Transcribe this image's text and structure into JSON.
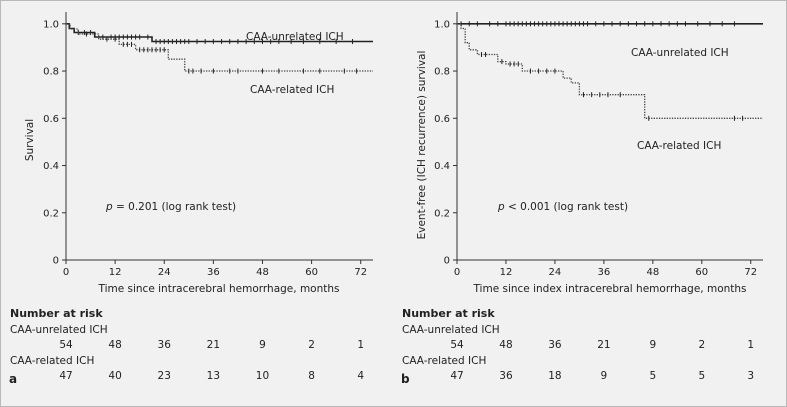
{
  "chart_data": [
    {
      "type": "line",
      "panel_label": "a",
      "xlabel": "Time since intracerebral hemorrhage, months",
      "ylabel": "Survival",
      "xlim": [
        0,
        75
      ],
      "ylim": [
        0,
        1.05
      ],
      "x_ticks": [
        0,
        12,
        24,
        36,
        48,
        60,
        72
      ],
      "y_ticks": [
        0,
        0.2,
        0.4,
        0.6,
        0.8,
        1.0
      ],
      "y_tick_labels": [
        "0",
        "0.2",
        "0.4",
        "0.6",
        "0.8",
        "1.0"
      ],
      "annotation_p": "p",
      "annotation_rest": " = 0.201 (log rank test)",
      "series": [
        {
          "name": "CAA-unrelated ICH",
          "style": "solid",
          "steps": [
            [
              0,
              1.0
            ],
            [
              0.8,
              0.98
            ],
            [
              2,
              0.963
            ],
            [
              7,
              0.944
            ],
            [
              21,
              0.925
            ],
            [
              75,
              0.925
            ]
          ],
          "censor_x": [
            3,
            4.5,
            6,
            9,
            11,
            12,
            13,
            14,
            15,
            16,
            17,
            18,
            20,
            22,
            23,
            24,
            25,
            26,
            27,
            28,
            29,
            30,
            32,
            34,
            36,
            38,
            40,
            42,
            44,
            46,
            48,
            50,
            52,
            55,
            58,
            62,
            66,
            70
          ]
        },
        {
          "name": "CAA-related ICH",
          "style": "dotted",
          "steps": [
            [
              0,
              1.0
            ],
            [
              1,
              0.978
            ],
            [
              3,
              0.957
            ],
            [
              8,
              0.935
            ],
            [
              13,
              0.913
            ],
            [
              17,
              0.89
            ],
            [
              25,
              0.85
            ],
            [
              29,
              0.8
            ],
            [
              75,
              0.8
            ]
          ],
          "censor_x": [
            5,
            10,
            12,
            14,
            15,
            16,
            18,
            19,
            20,
            21,
            22,
            23,
            24,
            30,
            31,
            33,
            36,
            40,
            42,
            48,
            52,
            58,
            62,
            68,
            71
          ]
        }
      ],
      "series_labels": [
        "CAA-unrelated ICH",
        "CAA-related ICH"
      ],
      "risk_table": {
        "title": "Number at risk",
        "rows": [
          {
            "label": "CAA-unrelated ICH",
            "values": [
              "54",
              "48",
              "36",
              "21",
              "9",
              "2",
              "1"
            ]
          },
          {
            "label": "CAA-related ICH",
            "values": [
              "47",
              "40",
              "23",
              "13",
              "10",
              "8",
              "4"
            ]
          }
        ]
      }
    },
    {
      "type": "line",
      "panel_label": "b",
      "xlabel": "Time since index intracerebral hemorrhage, months",
      "ylabel": "Event-free (ICH recurrence) survival",
      "xlim": [
        0,
        75
      ],
      "ylim": [
        0,
        1.05
      ],
      "x_ticks": [
        0,
        12,
        24,
        36,
        48,
        60,
        72
      ],
      "y_ticks": [
        0,
        0.2,
        0.4,
        0.6,
        0.8,
        1.0
      ],
      "y_tick_labels": [
        "0",
        "0.2",
        "0.4",
        "0.6",
        "0.8",
        "1.0"
      ],
      "annotation_p": "p",
      "annotation_rest": " < 0.001 (log rank test)",
      "series": [
        {
          "name": "CAA-unrelated ICH",
          "style": "solid",
          "steps": [
            [
              0,
              1.0
            ],
            [
              75,
              1.0
            ]
          ],
          "censor_x": [
            1,
            3,
            5,
            8,
            10,
            12,
            13,
            14,
            15,
            16,
            17,
            18,
            19,
            20,
            21,
            22,
            23,
            24,
            25,
            26,
            27,
            28,
            29,
            30,
            31,
            32,
            34,
            36,
            38,
            40,
            42,
            44,
            46,
            48,
            50,
            52,
            54,
            56,
            59,
            62,
            65,
            68
          ]
        },
        {
          "name": "CAA-related ICH",
          "style": "dotted",
          "steps": [
            [
              0,
              1.0
            ],
            [
              1,
              0.98
            ],
            [
              2,
              0.92
            ],
            [
              3,
              0.89
            ],
            [
              5,
              0.87
            ],
            [
              10,
              0.84
            ],
            [
              12,
              0.83
            ],
            [
              16,
              0.8
            ],
            [
              26,
              0.77
            ],
            [
              28,
              0.75
            ],
            [
              30,
              0.7
            ],
            [
              46,
              0.6
            ],
            [
              75,
              0.6
            ]
          ],
          "censor_x": [
            6,
            7,
            11,
            13,
            14,
            15,
            18,
            20,
            22,
            24,
            31,
            33,
            35,
            37,
            40,
            47,
            68,
            70
          ]
        }
      ],
      "series_labels": [
        "CAA-unrelated ICH",
        "CAA-related ICH"
      ],
      "risk_table": {
        "title": "Number at risk",
        "rows": [
          {
            "label": "CAA-unrelated ICH",
            "values": [
              "54",
              "48",
              "36",
              "21",
              "9",
              "2",
              "1"
            ]
          },
          {
            "label": "CAA-related ICH",
            "values": [
              "47",
              "36",
              "18",
              "9",
              "5",
              "5",
              "3"
            ]
          }
        ]
      }
    }
  ]
}
